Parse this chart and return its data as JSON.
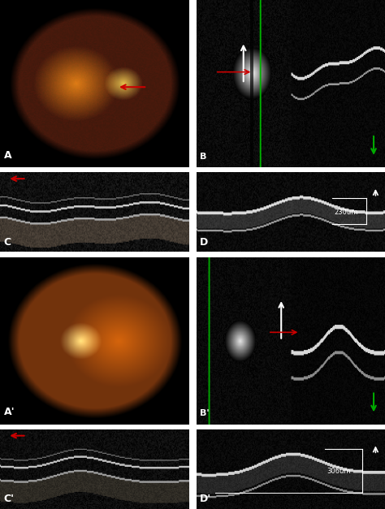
{
  "figure_width": 4.74,
  "figure_height": 6.27,
  "dpi": 100,
  "background_color": "#ffffff",
  "panel_labels": [
    "A",
    "B",
    "C",
    "D",
    "A'",
    "B'",
    "C'",
    "D'"
  ],
  "label_color": "#ffffff",
  "label_fontsize": 9,
  "red_arrow_color": "#cc0000",
  "green_arrow_color": "#00aa00",
  "white_arrow_color": "#ffffff",
  "measurement_230": "230um",
  "measurement_306": "306um"
}
